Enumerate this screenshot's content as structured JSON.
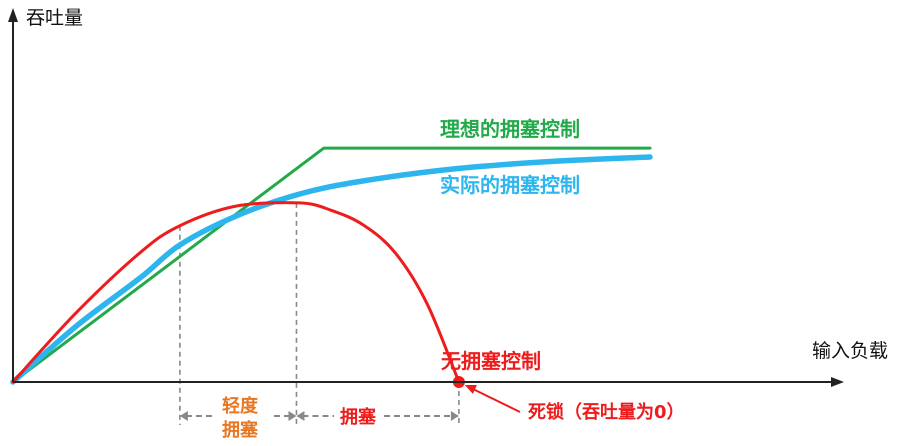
{
  "chart_data": {
    "type": "line",
    "title": "",
    "ylabel": "吞吐量",
    "xlabel": "输入负载",
    "grid": false,
    "legend": "none",
    "series": [
      {
        "name": "理想的拥塞控制",
        "color": "#22a94a",
        "x": [
          0,
          0.488,
          1.0
        ],
        "y": [
          0,
          0.657,
          0.657
        ]
      },
      {
        "name": "实际的拥塞控制",
        "color": "#2db5ee",
        "x": [
          0,
          0.1,
          0.2,
          0.262,
          0.35,
          0.45,
          0.55,
          0.7,
          0.85,
          1.0
        ],
        "y": [
          0,
          0.158,
          0.293,
          0.385,
          0.466,
          0.528,
          0.565,
          0.6,
          0.62,
          0.632
        ]
      },
      {
        "name": "无拥塞控制",
        "color": "#ee1c1c",
        "x": [
          0,
          0.1,
          0.2,
          0.262,
          0.35,
          0.45,
          0.5,
          0.55,
          0.6,
          0.65,
          0.7
        ],
        "y": [
          0,
          0.196,
          0.364,
          0.439,
          0.494,
          0.503,
          0.482,
          0.441,
          0.363,
          0.22,
          0
        ]
      }
    ],
    "markers": {
      "light_x": 0.262,
      "congestion_x": 0.445,
      "deadlock_x": 0.7
    },
    "annotations": {
      "light_line1": "轻度",
      "light_line2": "拥塞",
      "congestion": "拥塞",
      "deadlock": "死锁（吞吐量为0）"
    },
    "colors": {
      "axis": "#222222",
      "dashed": "#888888",
      "orange": "#e87722",
      "red": "#ee1c1c"
    }
  }
}
